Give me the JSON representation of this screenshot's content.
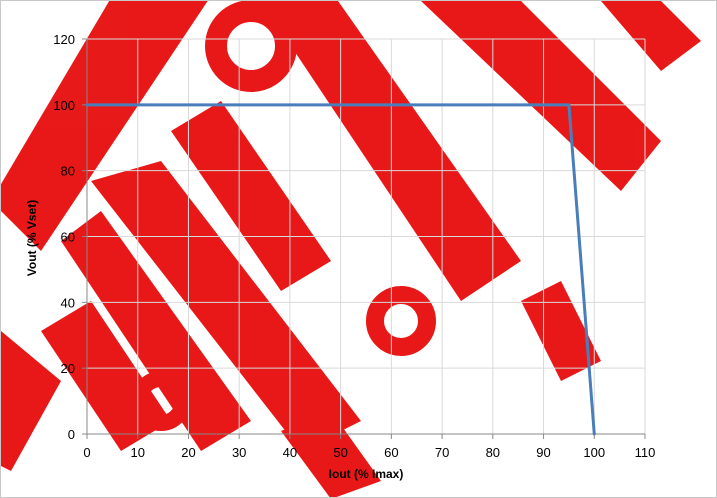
{
  "chart_data": {
    "type": "line",
    "title": "",
    "xlabel": "Iout (% Imax)",
    "ylabel": "Vout (% Vset)",
    "xlim": [
      0,
      110
    ],
    "ylim": [
      0,
      120
    ],
    "x_ticks": [
      0,
      10,
      20,
      30,
      40,
      50,
      60,
      70,
      80,
      90,
      100,
      110
    ],
    "y_ticks": [
      0,
      20,
      40,
      60,
      80,
      100,
      120
    ],
    "grid": true,
    "legend": "none",
    "series": [
      {
        "color": "#4a7ebb",
        "x": [
          0,
          95,
          100
        ],
        "y": [
          100,
          100,
          0
        ]
      }
    ],
    "watermark_color": "#e60000"
  }
}
